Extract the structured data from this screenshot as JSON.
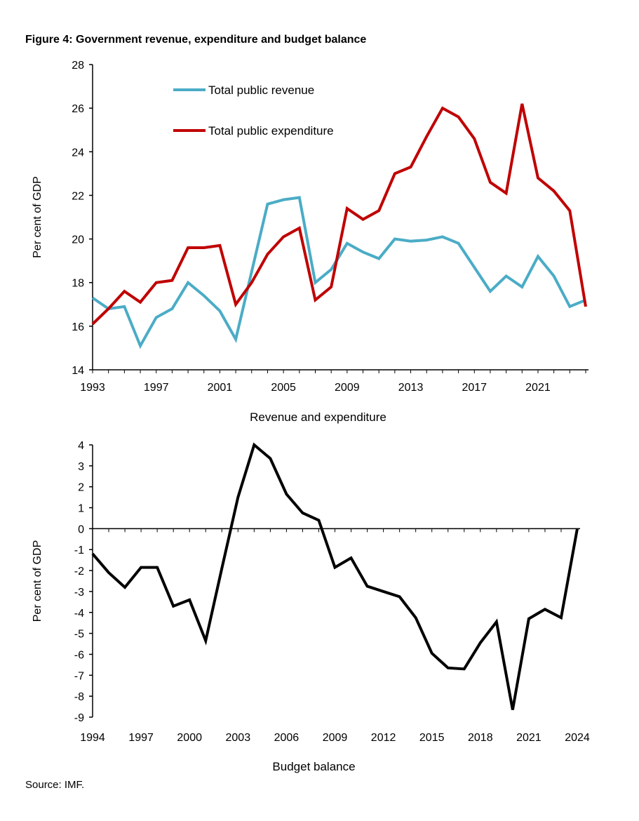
{
  "title": "Figure 4: Government revenue, expenditure and budget balance",
  "source": "Source: IMF.",
  "colors": {
    "revenue": "#4bacc6",
    "expenditure": "#c00000",
    "balance": "#000000"
  },
  "chart_data": [
    {
      "type": "line",
      "title": "Revenue and expenditure",
      "ylabel": "Per cent of GDP",
      "xlabel": "",
      "ylim": [
        14,
        28
      ],
      "yticks": [
        "14",
        "16",
        "18",
        "20",
        "22",
        "24",
        "26",
        "28"
      ],
      "xticks": [
        "1993",
        "1997",
        "2001",
        "2005",
        "2009",
        "2013",
        "2017",
        "2021"
      ],
      "legend": "top-left",
      "grid": false,
      "x": [
        1993,
        1994,
        1995,
        1996,
        1997,
        1998,
        1999,
        2000,
        2001,
        2002,
        2003,
        2004,
        2005,
        2006,
        2007,
        2008,
        2009,
        2010,
        2011,
        2012,
        2013,
        2014,
        2015,
        2016,
        2017,
        2018,
        2019,
        2020,
        2021,
        2022,
        2023,
        2024
      ],
      "series": [
        {
          "name": "Total public revenue",
          "values": [
            17.3,
            16.8,
            16.9,
            15.1,
            16.4,
            16.8,
            18.0,
            17.4,
            16.7,
            15.4,
            18.5,
            21.6,
            21.8,
            21.9,
            18.0,
            18.6,
            19.8,
            19.4,
            19.1,
            20.0,
            19.9,
            19.95,
            20.1,
            19.8,
            18.7,
            17.6,
            18.3,
            17.8,
            19.2,
            18.3,
            16.9,
            17.2
          ]
        },
        {
          "name": "Total public expenditure",
          "values": [
            16.1,
            16.8,
            17.6,
            17.1,
            18.0,
            18.1,
            19.6,
            19.6,
            19.7,
            17.0,
            18.0,
            19.3,
            20.1,
            20.5,
            17.2,
            17.8,
            21.4,
            20.9,
            21.3,
            23.0,
            23.3,
            24.7,
            26.0,
            25.6,
            24.6,
            22.6,
            22.1,
            26.2,
            22.8,
            22.2,
            21.3,
            16.9
          ]
        }
      ]
    },
    {
      "type": "line",
      "title": "Budget balance",
      "ylabel": "Per cent of GDP",
      "xlabel": "",
      "ylim": [
        -9,
        4
      ],
      "yticks": [
        "-9",
        "-8",
        "-7",
        "-6",
        "-5",
        "-4",
        "-3",
        "-2",
        "-1",
        "0",
        "1",
        "2",
        "3",
        "4"
      ],
      "xticks": [
        "1994",
        "1997",
        "2000",
        "2003",
        "2006",
        "2009",
        "2012",
        "2015",
        "2018",
        "2021",
        "2024"
      ],
      "grid": false,
      "x": [
        1994,
        1995,
        1996,
        1997,
        1998,
        1999,
        2000,
        2001,
        2002,
        2003,
        2004,
        2005,
        2006,
        2007,
        2008,
        2009,
        2010,
        2011,
        2012,
        2013,
        2014,
        2015,
        2016,
        2017,
        2018,
        2019,
        2020,
        2021,
        2022,
        2023,
        2024
      ],
      "series": [
        {
          "values": [
            -1.2,
            -2.1,
            -2.8,
            -1.85,
            -1.85,
            -3.7,
            -3.4,
            -5.35,
            -1.9,
            1.5,
            4.0,
            3.35,
            1.65,
            0.75,
            0.4,
            -1.85,
            -1.4,
            -2.75,
            -3.0,
            -3.25,
            -4.25,
            -5.95,
            -6.65,
            -6.7,
            -5.45,
            -4.45,
            -8.65,
            -4.3,
            -3.85,
            -4.25,
            0.0
          ]
        }
      ]
    }
  ]
}
